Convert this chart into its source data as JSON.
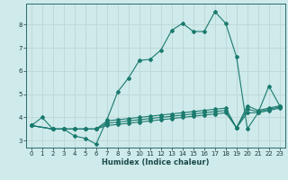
{
  "xlabel": "Humidex (Indice chaleur)",
  "bg_color": "#ceeaeb",
  "grid_color": "#c0d8d8",
  "line_color": "#1a7a6e",
  "xlim": [
    -0.5,
    23.5
  ],
  "ylim": [
    2.7,
    8.9
  ],
  "yticks": [
    3,
    4,
    5,
    6,
    7,
    8
  ],
  "xticks": [
    0,
    1,
    2,
    3,
    4,
    5,
    6,
    7,
    8,
    9,
    10,
    11,
    12,
    13,
    14,
    15,
    16,
    17,
    18,
    19,
    20,
    21,
    22,
    23
  ],
  "lines": [
    {
      "x": [
        0,
        1,
        2,
        3,
        4,
        5,
        6,
        7,
        8,
        9,
        10,
        11,
        12,
        13,
        14,
        15,
        16,
        17,
        18,
        19,
        20,
        21,
        22,
        23
      ],
      "y": [
        3.65,
        4.0,
        3.5,
        3.5,
        3.2,
        3.1,
        2.85,
        3.9,
        5.1,
        5.7,
        6.45,
        6.5,
        6.9,
        7.75,
        8.05,
        7.7,
        7.7,
        8.55,
        8.05,
        6.6,
        3.5,
        4.2,
        5.35,
        4.5
      ]
    },
    {
      "x": [
        0,
        2,
        3,
        4,
        5,
        6,
        7,
        8,
        9,
        10,
        11,
        12,
        13,
        14,
        15,
        16,
        17,
        18,
        19,
        20,
        21,
        22,
        23
      ],
      "y": [
        3.65,
        3.5,
        3.5,
        3.5,
        3.5,
        3.5,
        3.85,
        3.9,
        3.95,
        4.0,
        4.05,
        4.1,
        4.15,
        4.2,
        4.25,
        4.3,
        4.35,
        4.4,
        3.55,
        4.5,
        4.3,
        4.4,
        4.5
      ]
    },
    {
      "x": [
        0,
        2,
        3,
        4,
        5,
        6,
        7,
        8,
        9,
        10,
        11,
        12,
        13,
        14,
        15,
        16,
        17,
        18,
        19,
        20,
        21,
        22,
        23
      ],
      "y": [
        3.65,
        3.5,
        3.5,
        3.5,
        3.5,
        3.5,
        3.75,
        3.8,
        3.85,
        3.9,
        3.95,
        4.0,
        4.05,
        4.1,
        4.15,
        4.2,
        4.25,
        4.3,
        3.55,
        4.35,
        4.25,
        4.35,
        4.45
      ]
    },
    {
      "x": [
        0,
        2,
        3,
        4,
        5,
        6,
        7,
        8,
        9,
        10,
        11,
        12,
        13,
        14,
        15,
        16,
        17,
        18,
        19,
        20,
        21,
        22,
        23
      ],
      "y": [
        3.65,
        3.5,
        3.5,
        3.5,
        3.5,
        3.5,
        3.65,
        3.7,
        3.75,
        3.8,
        3.85,
        3.9,
        3.95,
        4.0,
        4.05,
        4.1,
        4.15,
        4.2,
        3.55,
        4.2,
        4.2,
        4.3,
        4.4
      ]
    }
  ]
}
